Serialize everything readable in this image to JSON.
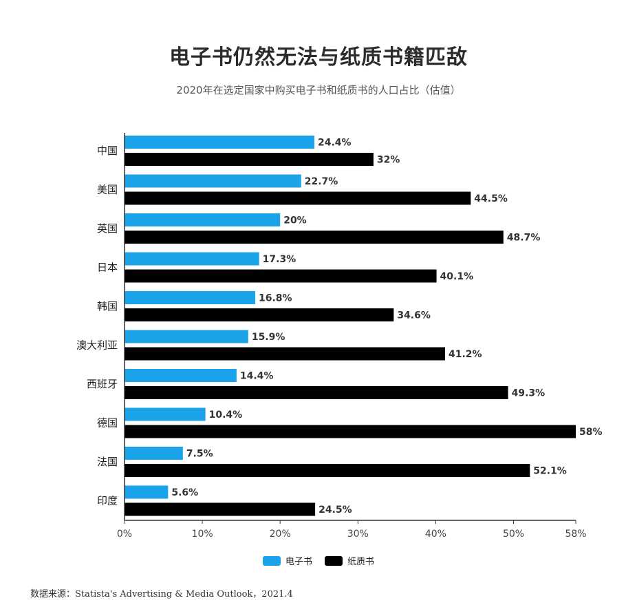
{
  "title": "电子书仍然无法与纸质书籍匹敌",
  "subtitle": "2020年在选定国家中购买电子书和纸质书的人口占比（估值）",
  "source": "数据来源：Statista's Advertising & Media Outlook，2021.4",
  "colors": {
    "ebook": "#1aa3e8",
    "paper": "#000000",
    "axis": "#333333"
  },
  "chart_data": {
    "type": "bar",
    "orientation": "horizontal",
    "categories": [
      "中国",
      "美国",
      "英国",
      "日本",
      "韩国",
      "澳大利亚",
      "西班牙",
      "德国",
      "法国",
      "印度"
    ],
    "series": [
      {
        "name": "电子书",
        "values": [
          24.4,
          22.7,
          20,
          17.3,
          16.8,
          15.9,
          14.4,
          10.4,
          7.5,
          5.6
        ],
        "labels": [
          "24.4%",
          "22.7%",
          "20%",
          "17.3%",
          "16.8%",
          "15.9%",
          "14.4%",
          "10.4%",
          "7.5%",
          "5.6%"
        ]
      },
      {
        "name": "纸质书",
        "values": [
          32,
          44.5,
          48.7,
          40.1,
          34.6,
          41.2,
          49.3,
          58,
          52.1,
          24.5
        ],
        "labels": [
          "32%",
          "44.5%",
          "48.7%",
          "40.1%",
          "34.6%",
          "41.2%",
          "49.3%",
          "58%",
          "52.1%",
          "24.5%"
        ]
      }
    ],
    "x_ticks": [
      0,
      10,
      20,
      30,
      40,
      50,
      58
    ],
    "x_tick_labels": [
      "0%",
      "10%",
      "20%",
      "30%",
      "40%",
      "50%",
      "58%"
    ],
    "xlim": [
      0,
      58
    ],
    "grid": false,
    "legend_position": "bottom"
  }
}
